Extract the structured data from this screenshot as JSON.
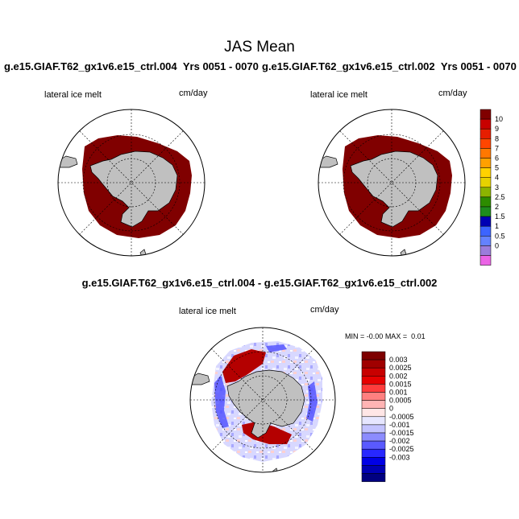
{
  "main_title": "JAS Mean",
  "panels": [
    {
      "case": "g.e15.GIAF.T62_gx1v6.e15_ctrl.004",
      "years": "Yrs 0051 - 0070",
      "var_label": "lateral ice melt",
      "units": "cm/day"
    },
    {
      "case": "g.e15.GIAF.T62_gx1v6.e15_ctrl.002",
      "years": "Yrs 0051 - 0070",
      "var_label": "lateral ice melt",
      "units": "cm/day"
    }
  ],
  "diff_panel": {
    "title": "g.e15.GIAF.T62_gx1v6.e15_ctrl.004 - g.e15.GIAF.T62_gx1v6.e15_ctrl.002",
    "var_label": "lateral ice melt",
    "units": "cm/day",
    "min_label": "MIN =",
    "min_value": "-0.00",
    "max_label": "MAX =",
    "max_value": "0.01"
  },
  "colorbar_main": {
    "labels": [
      "10",
      "9",
      "8",
      "7",
      "6",
      "5",
      "4",
      "3",
      "2.5",
      "2",
      "1.5",
      "1",
      "0.5",
      "0"
    ],
    "colors": [
      "#800000",
      "#c80000",
      "#e61e00",
      "#ff4600",
      "#ff7800",
      "#ffa000",
      "#ffd200",
      "#e6d200",
      "#8cb400",
      "#2d8c00",
      "#1e8c1e",
      "#0000b4",
      "#3c64ff",
      "#6482ff",
      "#9b7ddc",
      "#eb64e6"
    ]
  },
  "colorbar_diff": {
    "labels": [
      "0.003",
      "0.0025",
      "0.002",
      "0.0015",
      "0.001",
      "0.0005",
      "0",
      "-0.0005",
      "-0.001",
      "-0.0015",
      "-0.002",
      "-0.0025",
      "-0.003"
    ],
    "colors": [
      "#7d0000",
      "#a00000",
      "#c80000",
      "#e60000",
      "#ff3c3c",
      "#ff8080",
      "#ffb4b4",
      "#ffe6e6",
      "#e6e6ff",
      "#c3c3ff",
      "#8c8cff",
      "#5a5aff",
      "#2828ff",
      "#0000e6",
      "#0000b4",
      "#000080"
    ]
  },
  "map_colors": {
    "land": "#c0c0c0",
    "ice_melt_fill": "#800000",
    "diff_positive": "#b40000",
    "diff_negative": "#4b4bff"
  }
}
